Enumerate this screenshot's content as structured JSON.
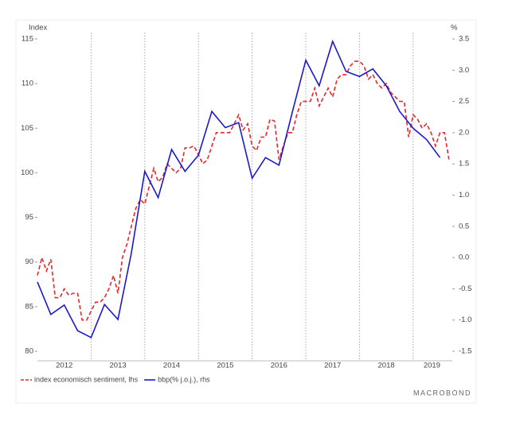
{
  "chart_data": {
    "type": "line",
    "y_axis_title": "Index",
    "y2_axis_title": "%",
    "brand": "MACROBOND",
    "xlim": [
      2012,
      2019.73
    ],
    "xticks": [
      2013,
      2014,
      2015,
      2016,
      2017,
      2018,
      2019
    ],
    "x_labels": [
      {
        "value": 2012.5,
        "label": "2012"
      },
      {
        "value": 2013.5,
        "label": "2013"
      },
      {
        "value": 2014.5,
        "label": "2014"
      },
      {
        "value": 2015.5,
        "label": "2015"
      },
      {
        "value": 2016.5,
        "label": "2016"
      },
      {
        "value": 2017.5,
        "label": "2017"
      },
      {
        "value": 2018.5,
        "label": "2018"
      },
      {
        "value": 2019.35,
        "label": "2019"
      }
    ],
    "ylim": [
      80,
      115
    ],
    "yticks": [
      80,
      85,
      90,
      95,
      100,
      105,
      110,
      115
    ],
    "y2lim": [
      -1.5,
      3.5
    ],
    "y2ticks": [
      -1.5,
      {
        "value": -1,
        "label": "-1.0"
      },
      -0.5,
      {
        "value": 0,
        "label": "0.0"
      },
      0.5,
      {
        "value": 1,
        "label": "1.0"
      },
      1.5,
      {
        "value": 2,
        "label": "2.0"
      },
      2.5,
      {
        "value": 3,
        "label": "3.0"
      },
      3.5
    ],
    "grid": true,
    "series": [
      {
        "name": "index economisch sentiment, lhs",
        "color": "#e8262b",
        "dashed": true,
        "x": [
          2012.0,
          2012.083,
          2012.167,
          2012.25,
          2012.333,
          2012.417,
          2012.5,
          2012.583,
          2012.667,
          2012.75,
          2012.833,
          2012.917,
          2013.0,
          2013.083,
          2013.167,
          2013.25,
          2013.333,
          2013.417,
          2013.5,
          2013.583,
          2013.667,
          2013.75,
          2013.833,
          2013.917,
          2014.0,
          2014.083,
          2014.167,
          2014.25,
          2014.333,
          2014.417,
          2014.5,
          2014.583,
          2014.667,
          2014.75,
          2014.833,
          2014.917,
          2015.0,
          2015.083,
          2015.167,
          2015.25,
          2015.333,
          2015.417,
          2015.5,
          2015.583,
          2015.667,
          2015.75,
          2015.833,
          2015.917,
          2016.0,
          2016.083,
          2016.167,
          2016.25,
          2016.333,
          2016.417,
          2016.5,
          2016.583,
          2016.667,
          2016.75,
          2016.833,
          2016.917,
          2017.0,
          2017.083,
          2017.167,
          2017.25,
          2017.333,
          2017.417,
          2017.5,
          2017.583,
          2017.667,
          2017.75,
          2017.833,
          2017.917,
          2018.0,
          2018.083,
          2018.167,
          2018.25,
          2018.333,
          2018.417,
          2018.5,
          2018.583,
          2018.667,
          2018.75,
          2018.833,
          2018.917,
          2019.0,
          2019.083,
          2019.167,
          2019.25,
          2019.333,
          2019.417,
          2019.5,
          2019.583,
          2019.667
        ],
        "values": [
          88.5,
          90.5,
          89,
          90.3,
          86,
          86,
          87,
          86.3,
          86.5,
          86.5,
          83.5,
          83.5,
          84.5,
          85.5,
          85.5,
          86,
          87,
          88.5,
          86.5,
          90.5,
          92,
          94,
          96,
          97,
          96.5,
          98.5,
          100.5,
          99,
          99.5,
          101,
          100.5,
          100,
          100.5,
          102.8,
          102.8,
          103,
          102,
          101,
          101.5,
          103,
          104.5,
          104.5,
          104.5,
          104.5,
          105.5,
          106.5,
          104.8,
          105.5,
          103,
          102.5,
          104,
          104,
          106,
          105.8,
          101.5,
          103,
          104.5,
          104.5,
          106.5,
          108,
          108,
          108,
          109.5,
          107.5,
          108.5,
          109.5,
          108.5,
          110.5,
          111,
          111,
          112,
          112.5,
          112.5,
          112,
          110.5,
          111,
          110,
          109.5,
          110,
          109,
          108.5,
          108,
          108,
          104,
          106.5,
          106,
          105,
          105.5,
          104.5,
          103,
          104.5,
          104.5,
          101.5
        ]
      },
      {
        "name": "bbp(% j.o.j.), rhs",
        "color": "#1a1acc",
        "axis": "y2",
        "x": [
          2012.0,
          2012.25,
          2012.5,
          2012.75,
          2013.0,
          2013.25,
          2013.5,
          2013.75,
          2014.0,
          2014.25,
          2014.5,
          2014.75,
          2015.0,
          2015.25,
          2015.5,
          2015.75,
          2016.0,
          2016.25,
          2016.5,
          2016.75,
          2017.0,
          2017.25,
          2017.5,
          2017.75,
          2018.0,
          2018.25,
          2018.5,
          2018.75,
          2019.0,
          2019.25,
          2019.5
        ],
        "values": [
          -0.39,
          -0.91,
          -0.76,
          -1.17,
          -1.28,
          -0.75,
          -0.99,
          0.07,
          1.38,
          0.96,
          1.73,
          1.38,
          1.64,
          2.34,
          2.08,
          2.16,
          1.27,
          1.6,
          1.48,
          2.33,
          3.16,
          2.75,
          3.46,
          2.98,
          2.9,
          3.02,
          2.75,
          2.34,
          2.07,
          1.89,
          1.6
        ]
      }
    ]
  }
}
